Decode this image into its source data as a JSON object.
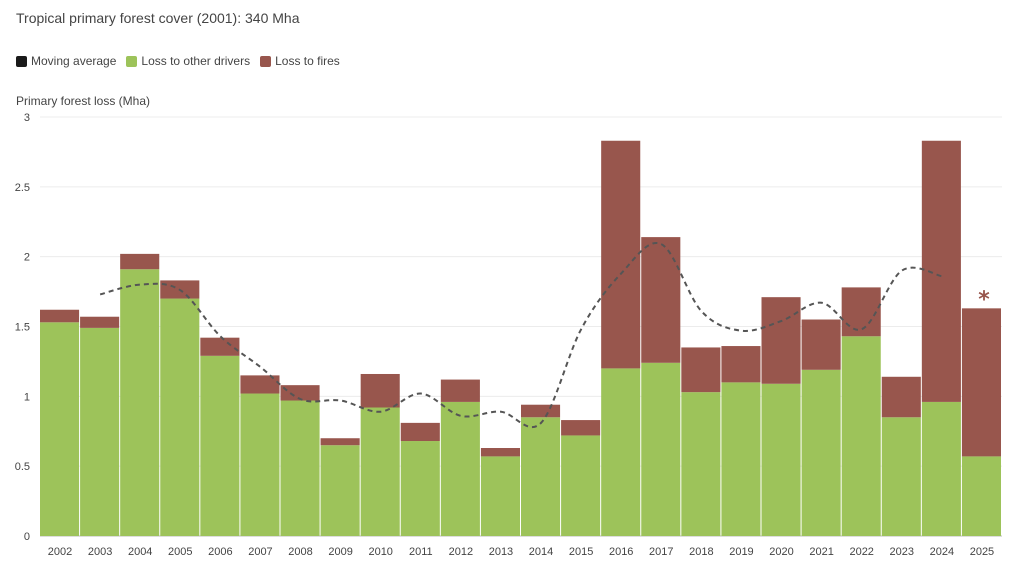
{
  "header": {
    "title": "Tropical primary forest cover (2001): 340 Mha"
  },
  "legend": [
    {
      "label": "Moving average",
      "color": "#1a1a1a"
    },
    {
      "label": "Loss to other drivers",
      "color": "#9dc35a"
    },
    {
      "label": "Loss to fires",
      "color": "#98564d"
    }
  ],
  "chart_data": {
    "type": "bar",
    "stacked": true,
    "ylabel": "Primary forest loss (Mha)",
    "ylim": [
      0,
      3
    ],
    "yticks": [
      "0",
      "0.5",
      "1",
      "1.5",
      "2",
      "2.5",
      "3"
    ],
    "categories": [
      "2002",
      "2003",
      "2004",
      "2005",
      "2006",
      "2007",
      "2008",
      "2009",
      "2010",
      "2011",
      "2012",
      "2013",
      "2014",
      "2015",
      "2016",
      "2017",
      "2018",
      "2019",
      "2020",
      "2021",
      "2022",
      "2023",
      "2024",
      "2025"
    ],
    "series": [
      {
        "name": "Loss to other drivers",
        "color": "#9dc35a",
        "values": [
          1.53,
          1.49,
          1.91,
          1.7,
          1.29,
          1.02,
          0.97,
          0.65,
          0.92,
          0.68,
          0.96,
          0.57,
          0.85,
          0.72,
          1.2,
          1.24,
          1.03,
          1.1,
          1.09,
          1.19,
          1.43,
          0.85,
          0.96,
          0.57
        ]
      },
      {
        "name": "Loss to fires",
        "color": "#98564d",
        "values": [
          0.09,
          0.08,
          0.11,
          0.13,
          0.13,
          0.13,
          0.11,
          0.05,
          0.24,
          0.13,
          0.16,
          0.06,
          0.09,
          0.11,
          1.63,
          0.9,
          0.32,
          0.26,
          0.62,
          0.36,
          0.35,
          0.29,
          1.87,
          1.06
        ]
      }
    ],
    "moving_average": {
      "name": "Moving average",
      "values": [
        null,
        1.73,
        1.8,
        1.76,
        1.43,
        1.21,
        0.98,
        0.97,
        0.89,
        1.02,
        0.86,
        0.89,
        0.81,
        1.48,
        1.88,
        2.09,
        1.61,
        1.47,
        1.54,
        1.67,
        1.48,
        1.9,
        1.86,
        null
      ]
    },
    "annotation": {
      "category": "2025",
      "text": "*",
      "color": "#98564d"
    }
  }
}
